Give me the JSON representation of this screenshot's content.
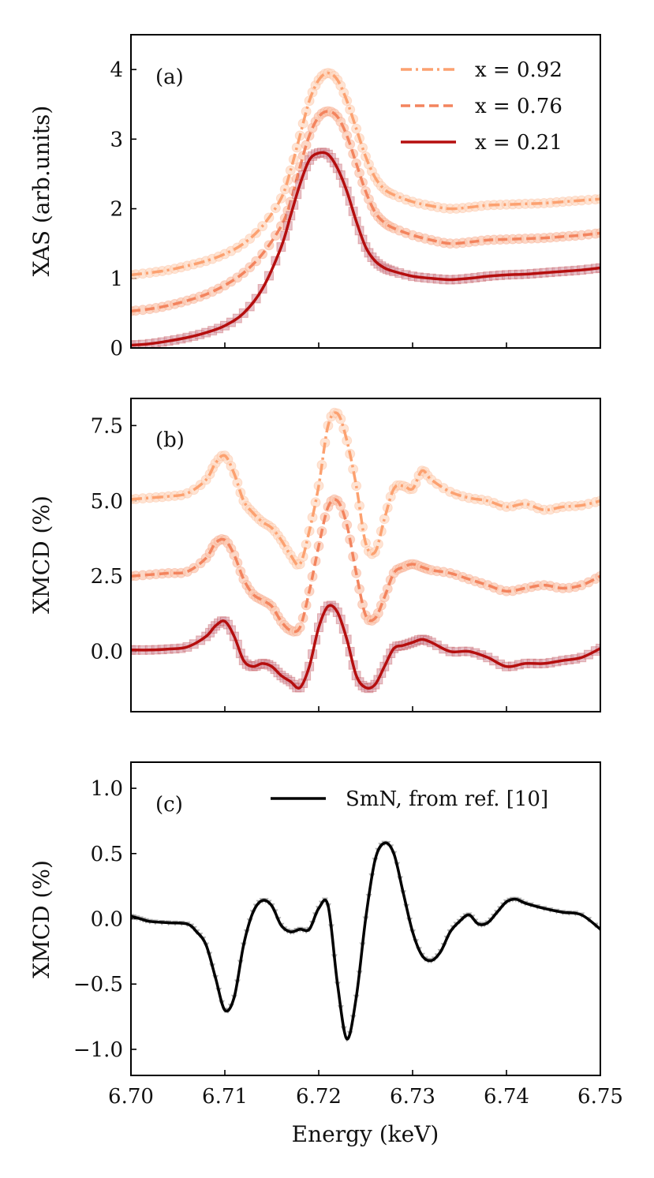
{
  "colors": {
    "x092": "#FCA170",
    "x076": "#F3845E",
    "x021": "#B50E0E",
    "smn": "#000000",
    "marker_x092": "#FDD8C2",
    "marker_x076": "#FBC6AE",
    "marker_x021": "#D9A1AE",
    "marker_smn": "#9a9a9a"
  },
  "chart_data": [
    {
      "id": "a",
      "type": "line",
      "panel_label": "(a)",
      "ylabel": "XAS (arb.units)",
      "xlabel": "",
      "xlim": [
        6.7,
        6.75
      ],
      "ylim": [
        0,
        4.5
      ],
      "yticks": [
        0,
        1,
        2,
        3,
        4
      ],
      "ytick_labels": [
        "0",
        "1",
        "2",
        "3",
        "4"
      ],
      "legend_position": "top-right",
      "series": [
        {
          "name": "x = 0.92",
          "style": "dashdot",
          "marker": "circle",
          "x": [
            6.7,
            6.702,
            6.704,
            6.706,
            6.708,
            6.71,
            6.712,
            6.714,
            6.716,
            6.717,
            6.718,
            6.719,
            6.72,
            6.721,
            6.722,
            6.723,
            6.724,
            6.725,
            6.726,
            6.727,
            6.728,
            6.73,
            6.732,
            6.734,
            6.736,
            6.738,
            6.74,
            6.742,
            6.744,
            6.746,
            6.748,
            6.75
          ],
          "y": [
            1.05,
            1.08,
            1.12,
            1.18,
            1.25,
            1.35,
            1.5,
            1.75,
            2.15,
            2.55,
            3.05,
            3.55,
            3.85,
            3.95,
            3.85,
            3.55,
            3.15,
            2.75,
            2.45,
            2.28,
            2.2,
            2.1,
            2.04,
            2.0,
            2.02,
            2.05,
            2.06,
            2.07,
            2.08,
            2.1,
            2.12,
            2.14
          ]
        },
        {
          "name": "x = 0.76",
          "style": "dashed",
          "marker": "circle",
          "x": [
            6.7,
            6.702,
            6.704,
            6.706,
            6.708,
            6.71,
            6.712,
            6.714,
            6.716,
            6.717,
            6.718,
            6.719,
            6.72,
            6.721,
            6.722,
            6.723,
            6.724,
            6.725,
            6.726,
            6.727,
            6.728,
            6.73,
            6.732,
            6.734,
            6.736,
            6.738,
            6.74,
            6.742,
            6.744,
            6.746,
            6.748,
            6.75
          ],
          "y": [
            0.53,
            0.56,
            0.61,
            0.68,
            0.77,
            0.9,
            1.08,
            1.35,
            1.75,
            2.1,
            2.6,
            3.05,
            3.32,
            3.4,
            3.32,
            3.05,
            2.65,
            2.25,
            1.95,
            1.8,
            1.72,
            1.62,
            1.55,
            1.5,
            1.52,
            1.55,
            1.56,
            1.57,
            1.58,
            1.6,
            1.62,
            1.65
          ]
        },
        {
          "name": "x = 0.21",
          "style": "solid",
          "marker": "square",
          "x": [
            6.7,
            6.702,
            6.704,
            6.706,
            6.708,
            6.71,
            6.712,
            6.714,
            6.716,
            6.717,
            6.718,
            6.719,
            6.72,
            6.721,
            6.722,
            6.723,
            6.724,
            6.725,
            6.726,
            6.727,
            6.728,
            6.73,
            6.732,
            6.734,
            6.736,
            6.738,
            6.74,
            6.742,
            6.744,
            6.746,
            6.748,
            6.75
          ],
          "y": [
            0.04,
            0.06,
            0.1,
            0.15,
            0.22,
            0.32,
            0.5,
            0.85,
            1.45,
            1.9,
            2.35,
            2.7,
            2.8,
            2.78,
            2.58,
            2.25,
            1.82,
            1.45,
            1.25,
            1.15,
            1.1,
            1.03,
            1.0,
            0.98,
            1.0,
            1.03,
            1.05,
            1.06,
            1.08,
            1.1,
            1.12,
            1.15
          ]
        }
      ]
    },
    {
      "id": "b",
      "type": "line",
      "panel_label": "(b)",
      "ylabel": "XMCD (%)",
      "xlabel": "",
      "xlim": [
        6.7,
        6.75
      ],
      "ylim": [
        -2.0,
        8.4
      ],
      "yticks": [
        0.0,
        2.5,
        5.0,
        7.5
      ],
      "ytick_labels": [
        "0.0",
        "2.5",
        "5.0",
        "7.5"
      ],
      "series": [
        {
          "name": "x = 0.92",
          "style": "dashdot",
          "marker": "circle",
          "x": [
            6.7,
            6.702,
            6.704,
            6.706,
            6.708,
            6.709,
            6.71,
            6.711,
            6.712,
            6.713,
            6.714,
            6.715,
            6.716,
            6.717,
            6.718,
            6.719,
            6.72,
            6.721,
            6.722,
            6.723,
            6.724,
            6.725,
            6.726,
            6.727,
            6.728,
            6.729,
            6.73,
            6.731,
            6.732,
            6.734,
            6.736,
            6.738,
            6.74,
            6.742,
            6.744,
            6.746,
            6.748,
            6.75
          ],
          "y": [
            5.05,
            5.1,
            5.15,
            5.25,
            5.7,
            6.25,
            6.5,
            5.9,
            5.0,
            4.6,
            4.3,
            4.1,
            3.7,
            3.2,
            2.9,
            4.0,
            5.5,
            7.5,
            7.9,
            7.0,
            5.5,
            3.6,
            3.3,
            4.4,
            5.4,
            5.5,
            5.4,
            6.0,
            5.7,
            5.3,
            5.1,
            5.0,
            4.8,
            4.9,
            4.7,
            4.8,
            4.85,
            5.0
          ]
        },
        {
          "name": "x = 0.76",
          "style": "dashed",
          "marker": "circle",
          "x": [
            6.7,
            6.702,
            6.704,
            6.706,
            6.708,
            6.709,
            6.71,
            6.711,
            6.712,
            6.713,
            6.714,
            6.715,
            6.716,
            6.717,
            6.718,
            6.719,
            6.72,
            6.721,
            6.722,
            6.723,
            6.724,
            6.725,
            6.726,
            6.727,
            6.728,
            6.729,
            6.73,
            6.731,
            6.732,
            6.734,
            6.736,
            6.738,
            6.74,
            6.742,
            6.744,
            6.746,
            6.748,
            6.75
          ],
          "y": [
            2.5,
            2.55,
            2.6,
            2.65,
            3.1,
            3.6,
            3.7,
            3.2,
            2.4,
            1.9,
            1.7,
            1.5,
            1.0,
            0.7,
            0.8,
            2.0,
            3.5,
            4.8,
            5.0,
            4.2,
            2.6,
            1.2,
            1.1,
            1.8,
            2.6,
            2.8,
            2.9,
            2.8,
            2.7,
            2.6,
            2.4,
            2.2,
            2.0,
            2.1,
            2.2,
            2.1,
            2.2,
            2.5
          ]
        },
        {
          "name": "x = 0.21",
          "style": "solid",
          "marker": "square",
          "x": [
            6.7,
            6.702,
            6.704,
            6.706,
            6.708,
            6.709,
            6.71,
            6.711,
            6.712,
            6.713,
            6.714,
            6.715,
            6.716,
            6.717,
            6.718,
            6.719,
            6.72,
            6.721,
            6.722,
            6.723,
            6.724,
            6.725,
            6.726,
            6.727,
            6.728,
            6.729,
            6.73,
            6.731,
            6.732,
            6.734,
            6.736,
            6.738,
            6.74,
            6.742,
            6.744,
            6.746,
            6.748,
            6.75
          ],
          "y": [
            0.05,
            0.05,
            0.08,
            0.15,
            0.5,
            0.85,
            1.0,
            0.5,
            -0.3,
            -0.5,
            -0.4,
            -0.5,
            -0.8,
            -1.0,
            -1.2,
            -0.5,
            0.8,
            1.5,
            1.3,
            0.4,
            -0.8,
            -1.2,
            -1.1,
            -0.5,
            0.1,
            0.2,
            0.3,
            0.4,
            0.3,
            0.0,
            0.0,
            -0.2,
            -0.5,
            -0.4,
            -0.4,
            -0.3,
            -0.2,
            0.1
          ]
        }
      ]
    },
    {
      "id": "c",
      "type": "line",
      "panel_label": "(c)",
      "ylabel": "XMCD (%)",
      "xlabel": "Energy (keV)",
      "xlim": [
        6.7,
        6.75
      ],
      "ylim": [
        -1.2,
        1.2
      ],
      "yticks": [
        -1.0,
        -0.5,
        0.0,
        0.5,
        1.0
      ],
      "ytick_labels": [
        "−1.0",
        "−0.5",
        "0.0",
        "0.5",
        "1.0"
      ],
      "xticks": [
        6.7,
        6.71,
        6.72,
        6.73,
        6.74,
        6.75
      ],
      "xtick_labels": [
        "6.70",
        "6.71",
        "6.72",
        "6.73",
        "6.74",
        "6.75"
      ],
      "legend_position": "top-right",
      "series": [
        {
          "name": "SmN, from ref. [10]",
          "style": "solid",
          "marker": "triangle",
          "x": [
            6.7,
            6.701,
            6.702,
            6.704,
            6.706,
            6.707,
            6.708,
            6.709,
            6.71,
            6.711,
            6.712,
            6.713,
            6.714,
            6.715,
            6.716,
            6.717,
            6.718,
            6.719,
            6.72,
            6.721,
            6.722,
            6.723,
            6.724,
            6.725,
            6.726,
            6.727,
            6.728,
            6.729,
            6.73,
            6.731,
            6.732,
            6.733,
            6.734,
            6.735,
            6.736,
            6.737,
            6.738,
            6.739,
            6.74,
            6.741,
            6.742,
            6.744,
            6.746,
            6.748,
            6.75
          ],
          "y": [
            0.02,
            0.0,
            -0.02,
            -0.03,
            -0.04,
            -0.1,
            -0.2,
            -0.45,
            -0.7,
            -0.6,
            -0.2,
            0.05,
            0.14,
            0.1,
            -0.05,
            -0.1,
            -0.08,
            -0.08,
            0.08,
            0.1,
            -0.5,
            -0.92,
            -0.6,
            0.0,
            0.45,
            0.58,
            0.5,
            0.2,
            -0.1,
            -0.28,
            -0.32,
            -0.25,
            -0.1,
            -0.02,
            0.03,
            -0.04,
            -0.03,
            0.05,
            0.13,
            0.15,
            0.12,
            0.08,
            0.05,
            0.03,
            -0.08
          ]
        }
      ]
    }
  ]
}
